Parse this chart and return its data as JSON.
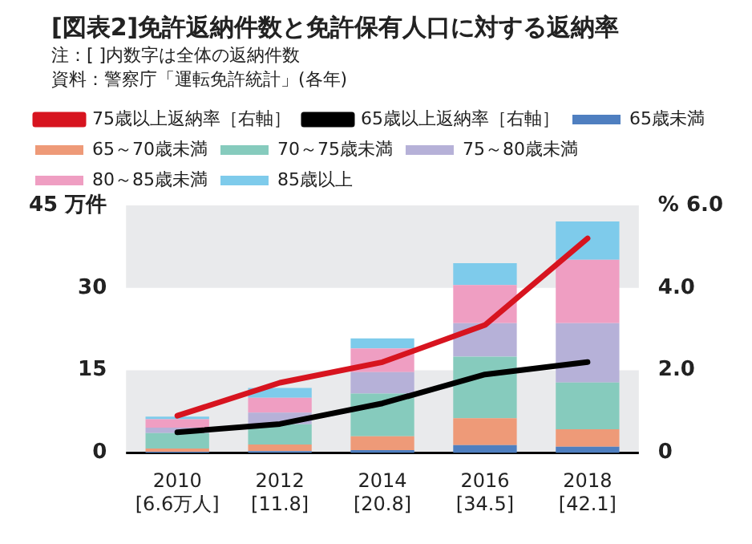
{
  "chart_data": {
    "type": "bar",
    "title": "[図表2]免許返納件数と免許保有人口に対する返納率",
    "annotations": [
      "注：[ ]内数字は全体の返納件数",
      "資料：警察庁「運転免許統計」(各年)"
    ],
    "categories": [
      "2010\n[6.6万人]",
      "2012\n[11.8]",
      "2014\n[20.8]",
      "2016\n[34.5]",
      "2018\n[42.1]"
    ],
    "stacked": true,
    "legend": "top",
    "marker": "none",
    "series": [
      {
        "name": "65歳未満",
        "color": "#4f7fc0",
        "values": [
          0.2,
          0.3,
          0.5,
          1.4,
          1.1
        ]
      },
      {
        "name": "65～70歳未満",
        "color": "#ee9a78",
        "values": [
          0.6,
          1.2,
          2.5,
          4.9,
          3.2
        ]
      },
      {
        "name": "70～75歳未満",
        "color": "#86cbbd",
        "values": [
          2.8,
          3.7,
          7.8,
          11.2,
          8.5
        ]
      },
      {
        "name": "75～80歳未満",
        "color": "#b6b1d8",
        "values": [
          1.0,
          2.1,
          3.9,
          6.1,
          10.8
        ]
      },
      {
        "name": "80～85歳未満",
        "color": "#ef9ec2",
        "values": [
          1.5,
          2.7,
          4.3,
          6.9,
          11.5
        ]
      },
      {
        "name": "85歳以上",
        "color": "#7ecbeb",
        "values": [
          0.5,
          1.8,
          1.8,
          4.0,
          7.0
        ]
      },
      {
        "name": "75歳以上返納率［右軸］",
        "type": "line",
        "axis": "y2",
        "color": "#d7141f",
        "values": [
          0.9,
          1.7,
          2.2,
          3.1,
          5.2
        ]
      },
      {
        "name": "65歳以上返納率［右軸］",
        "type": "line",
        "axis": "y2",
        "color": "#000000",
        "values": [
          0.5,
          0.7,
          1.2,
          1.9,
          2.2
        ]
      }
    ],
    "ylim": [
      0,
      45
    ],
    "yticks": [
      0,
      15,
      30,
      {
        "value": 45,
        "label": "45 万件"
      }
    ],
    "y2lim": [
      0,
      6
    ],
    "y2ticks": [
      {
        "value": 0,
        "label": "0"
      },
      {
        "value": 2,
        "label": "2.0"
      },
      {
        "value": 4,
        "label": "4.0"
      },
      {
        "value": 6,
        "label": "% 6.0"
      }
    ],
    "bands": [
      {
        "axis": "y",
        "from": 0,
        "to": 15,
        "color": "#e9eaec"
      },
      {
        "axis": "y",
        "from": 30,
        "to": 45,
        "color": "#e9eaec"
      }
    ]
  }
}
